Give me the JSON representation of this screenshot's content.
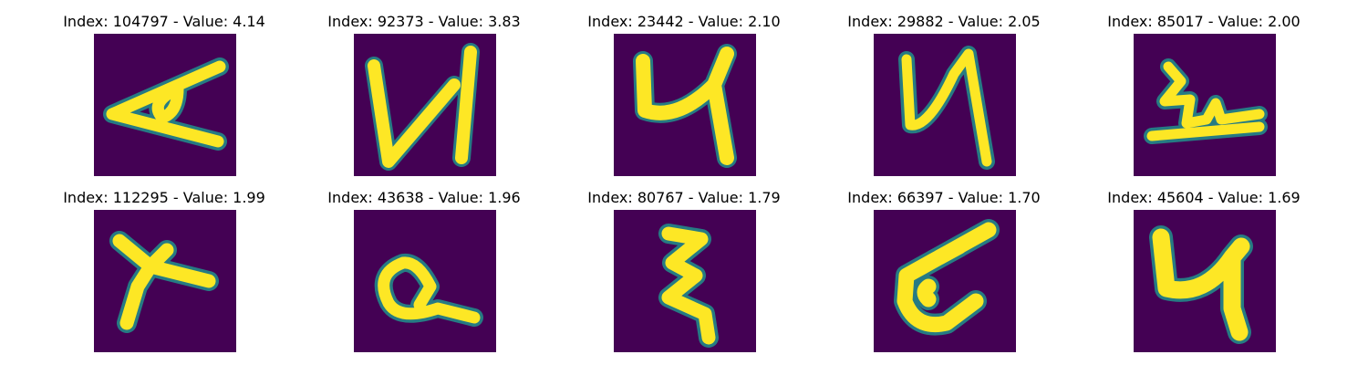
{
  "figure": {
    "background_color": "#ffffff",
    "colormap": [
      "#440154",
      "#21918c",
      "#fde725"
    ]
  },
  "panels": [
    {
      "title": "Index: 104797 - Value: 4.14"
    },
    {
      "title": "Index: 92373 - Value: 3.83"
    },
    {
      "title": "Index: 23442 - Value: 2.10"
    },
    {
      "title": "Index: 29882 - Value: 2.05"
    },
    {
      "title": "Index: 85017 - Value: 2.00"
    },
    {
      "title": "Index: 112295 - Value: 1.99"
    },
    {
      "title": "Index: 43638 - Value: 1.96"
    },
    {
      "title": "Index: 80767 - Value: 1.79"
    },
    {
      "title": "Index: 66397 - Value: 1.70"
    },
    {
      "title": "Index: 45604 - Value: 1.69"
    }
  ]
}
